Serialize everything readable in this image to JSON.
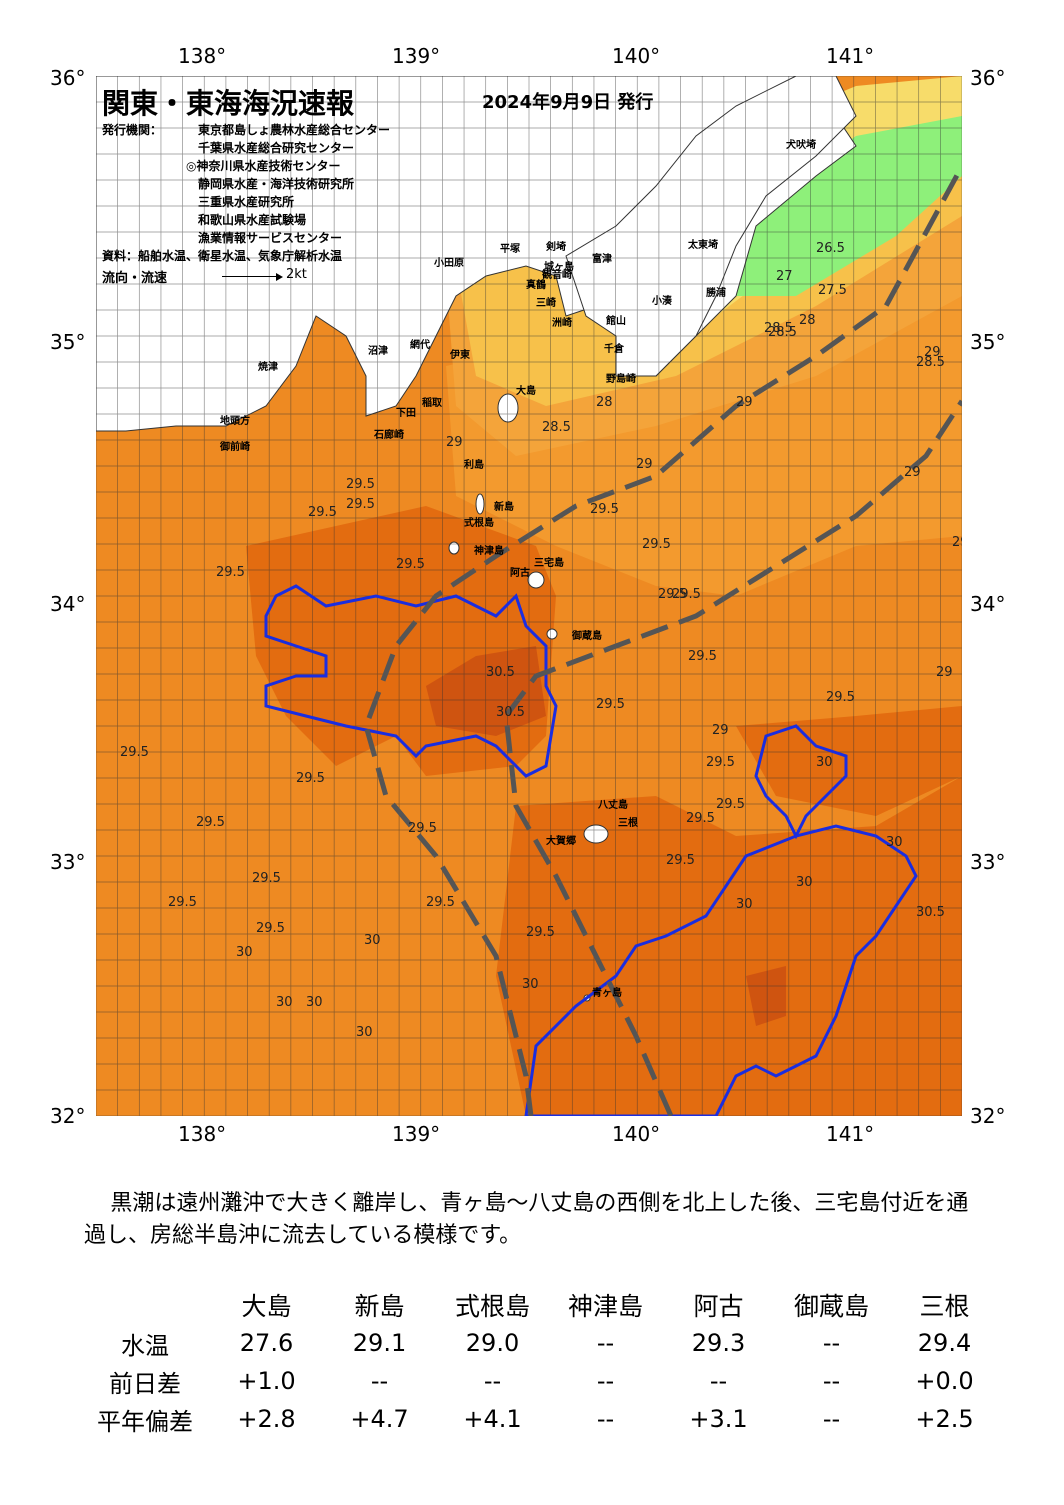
{
  "header": {
    "title": "関東・東海海況速報",
    "date": "2024年9月9日 発行",
    "issuer_label": "発行機関：",
    "issuers": [
      "東京都島しょ農林水産総合センター",
      "千葉県水産総合研究センター",
      "◎神奈川県水産技術センター",
      "静岡県水産・海洋技術研究所",
      "三重県水産研究所",
      "和歌山県水産試験場",
      "漁業情報サービスセンター"
    ],
    "source": "資料：船舶水温、衛星水温、気象庁解析水温",
    "flow_label": "流向・流速",
    "flow_scale": "2kt"
  },
  "axes": {
    "lon_top": [
      "138°",
      "139°",
      "140°",
      "141°"
    ],
    "lon_bottom": [
      "138°",
      "139°",
      "140°",
      "141°"
    ],
    "lat_left": [
      "36°",
      "35°",
      "34°",
      "33°",
      "32°"
    ],
    "lat_right": [
      "36°",
      "35°",
      "34°",
      "33°",
      "32°"
    ]
  },
  "map": {
    "colors": {
      "water_27": "#f7dc6a",
      "water_28": "#f7c14a",
      "water_28_5": "#f4a43a",
      "water_29": "#f39a2e",
      "water_29_5": "#ee8a22",
      "water_30": "#e36c10",
      "water_30_5": "#cf5410",
      "cold_26": "#8ef07a",
      "land": "#ffffff",
      "kuroshio_axis": "#555555",
      "isotherm_30": "#1a2de0"
    },
    "isotherm_labels": [
      "26.5",
      "27",
      "27.5",
      "28",
      "28",
      "28.5",
      "28.5",
      "28.5",
      "28.5",
      "29",
      "29",
      "29",
      "29",
      "29",
      "29",
      "29",
      "29",
      "29.5",
      "29.5",
      "29.5",
      "29.5",
      "29.5",
      "29.5",
      "29.5",
      "29.5",
      "29.5",
      "29.5",
      "29.5",
      "29.5",
      "29.5",
      "29.5",
      "29.5",
      "29.5",
      "29.5",
      "29.5",
      "29.5",
      "29.5",
      "29.5",
      "29.5",
      "29.5",
      "29.5",
      "29.5",
      "30",
      "30",
      "30",
      "30",
      "30",
      "30",
      "30",
      "30",
      "30",
      "30",
      "30.5",
      "30.5",
      "30.5"
    ],
    "places": [
      "犬吠埼",
      "太東埼",
      "勝浦",
      "小湊",
      "館山",
      "千倉",
      "野島崎",
      "洲崎",
      "剣埼",
      "城ヶ島",
      "三崎",
      "観音崎",
      "富津",
      "平塚",
      "小田原",
      "真鶴",
      "伊東",
      "網代",
      "稲取",
      "石廊崎",
      "下田",
      "沼津",
      "焼津",
      "御前崎",
      "地頭方",
      "大島",
      "利島",
      "新島",
      "式根島",
      "神津島",
      "三宅島",
      "阿古",
      "御蔵島",
      "八丈島",
      "三根",
      "大賀郷",
      "青ヶ島"
    ]
  },
  "summary": "黒潮は遠州灘沖で大きく離岸し、青ヶ島～八丈島の西側を北上した後、三宅島付近を通過し、房総半島沖に流去している模様です。",
  "table": {
    "columns": [
      "大島",
      "新島",
      "式根島",
      "神津島",
      "阿古",
      "御蔵島",
      "三根"
    ],
    "rows": [
      {
        "label": "水温",
        "values": [
          "27.6",
          "29.1",
          "29.0",
          "--",
          "29.3",
          "--",
          "29.4"
        ]
      },
      {
        "label": "前日差",
        "values": [
          "+1.0",
          "--",
          "--",
          "--",
          "--",
          "--",
          "+0.0"
        ]
      },
      {
        "label": "平年偏差",
        "values": [
          "+2.8",
          "+4.7",
          "+4.1",
          "--",
          "+3.1",
          "--",
          "+2.5"
        ]
      }
    ]
  }
}
